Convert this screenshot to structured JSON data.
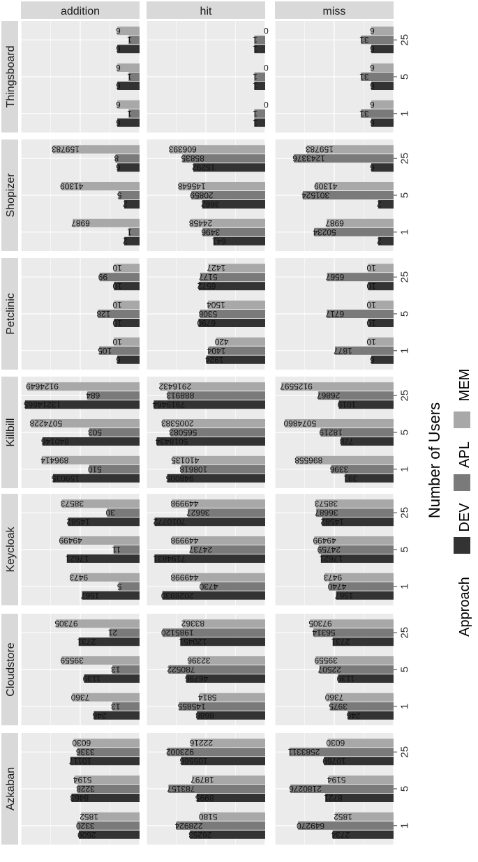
{
  "chart_data": {
    "type": "bar",
    "orientation": "horizontal-faceted",
    "facet_columns": [
      "addition",
      "hit",
      "miss"
    ],
    "facet_rows": [
      "Thingsboard",
      "Shopizer",
      "Petclinic",
      "Killbill",
      "Keycloak",
      "Cloudstore",
      "Azkaban"
    ],
    "users": [
      "1",
      "5",
      "25"
    ],
    "series": [
      {
        "name": "DEV",
        "color": "#333333"
      },
      {
        "name": "APL",
        "color": "#7a7a7a"
      },
      {
        "name": "MEM",
        "color": "#a8a8a8"
      }
    ],
    "legend": {
      "approach_title": "Approach",
      "users_title": "Number of Users"
    },
    "scale": "log",
    "grid": true,
    "values": {
      "Azkaban": {
        "addition": {
          "1": [
            2609,
            3320,
            1852
          ],
          "5": [
            8463,
            3228,
            5194
          ],
          "25": [
            10117,
            3336,
            6030
          ]
        },
        "hit": {
          "1": [
            26253,
            228924,
            5180
          ],
          "5": [
            8995,
            783157,
            18797
          ],
          "25": [
            105566,
            923002,
            22216
          ]
        },
        "miss": {
          "1": [
            2734,
            649270,
            1852
          ],
          "5": [
            8721,
            2180276,
            5194
          ],
          "25": [
            10769,
            2583311,
            6030
          ]
        }
      },
      "Cloudstore": {
        "addition": {
          "1": [
            246,
            13,
            7360
          ],
          "5": [
            1139,
            13,
            39559
          ],
          "25": [
            2731,
            21,
            97305
          ]
        },
        "hit": {
          "1": [
            8688,
            145855,
            5814
          ],
          "5": [
            46796,
            780522,
            32396
          ],
          "25": [
            120451,
            1985120,
            83362
          ]
        },
        "miss": {
          "1": [
            246,
            3975,
            7360
          ],
          "5": [
            1139,
            22507,
            39559
          ],
          "25": [
            2731,
            56314,
            97305
          ]
        }
      },
      "Keycloak": {
        "addition": {
          "1": [
            1567,
            5,
            9473
          ],
          "5": [
            17621,
            11,
            49499
          ],
          "25": [
            14582,
            30,
            38573
          ]
        },
        "hit": {
          "1": [
            2028930,
            4730,
            449998
          ],
          "5": [
            7194831,
            24737,
            449998
          ],
          "25": [
            7010772,
            36627,
            449998
          ]
        },
        "miss": {
          "1": [
            1567,
            4740,
            9473
          ],
          "5": [
            17621,
            24759,
            49499
          ],
          "25": [
            14582,
            36687,
            38573
          ]
        }
      },
      "Killbill": {
        "addition": {
          "1": [
            159035,
            510,
            896414
          ],
          "5": [
            840146,
            503,
            5074228
          ],
          "25": [
            13214665,
            684,
            9124649
          ]
        },
        "hit": {
          "1": [
            948005,
            108618,
            410135
          ],
          "5": [
            5018434,
            565083,
            2005383
          ],
          "25": [
            7919464,
            888913,
            2916432
          ]
        },
        "miss": {
          "1": [
            391,
            3396,
            896558
          ],
          "5": [
            728,
            18219,
            5074860
          ],
          "25": [
            1019,
            26867,
            9125597
          ]
        }
      },
      "Petclinic": {
        "addition": {
          "1": [
            6,
            105,
            10
          ],
          "5": [
            10,
            128,
            10
          ],
          "25": [
            10,
            99,
            10
          ]
        },
        "hit": {
          "1": [
            1924,
            1404,
            420
          ],
          "5": [
            6790,
            5308,
            1504
          ],
          "25": [
            6572,
            5177,
            1427
          ]
        },
        "miss": {
          "1": [
            6,
            1877,
            10
          ],
          "5": [
            10,
            6717,
            10
          ],
          "25": [
            10,
            6567,
            10
          ]
        }
      },
      "Shopizer": {
        "addition": {
          "1": [
            2,
            1,
            6987
          ],
          "5": [
            2,
            5,
            41309
          ],
          "25": [
            6,
            8,
            159783
          ]
        },
        "hit": {
          "1": [
            641,
            3496,
            24458
          ],
          "5": [
            3662,
            20859,
            145648
          ],
          "25": [
            15292,
            85835,
            606393
          ]
        },
        "miss": {
          "1": [
            2,
            50234,
            6987
          ],
          "5": [
            2,
            301524,
            41309
          ],
          "25": [
            6,
            1243376,
            159783
          ]
        }
      },
      "Thingsboard": {
        "addition": {
          "1": [
            6,
            1,
            6
          ],
          "5": [
            6,
            1,
            6
          ],
          "25": [
            6,
            1,
            6
          ]
        },
        "hit": {
          "1": [
            1,
            1,
            0
          ],
          "5": [
            1,
            1,
            0
          ],
          "25": [
            1,
            1,
            0
          ]
        },
        "miss": {
          "1": [
            6,
            31,
            6
          ],
          "5": [
            6,
            31,
            6
          ],
          "25": [
            6,
            31,
            6
          ]
        }
      }
    }
  }
}
